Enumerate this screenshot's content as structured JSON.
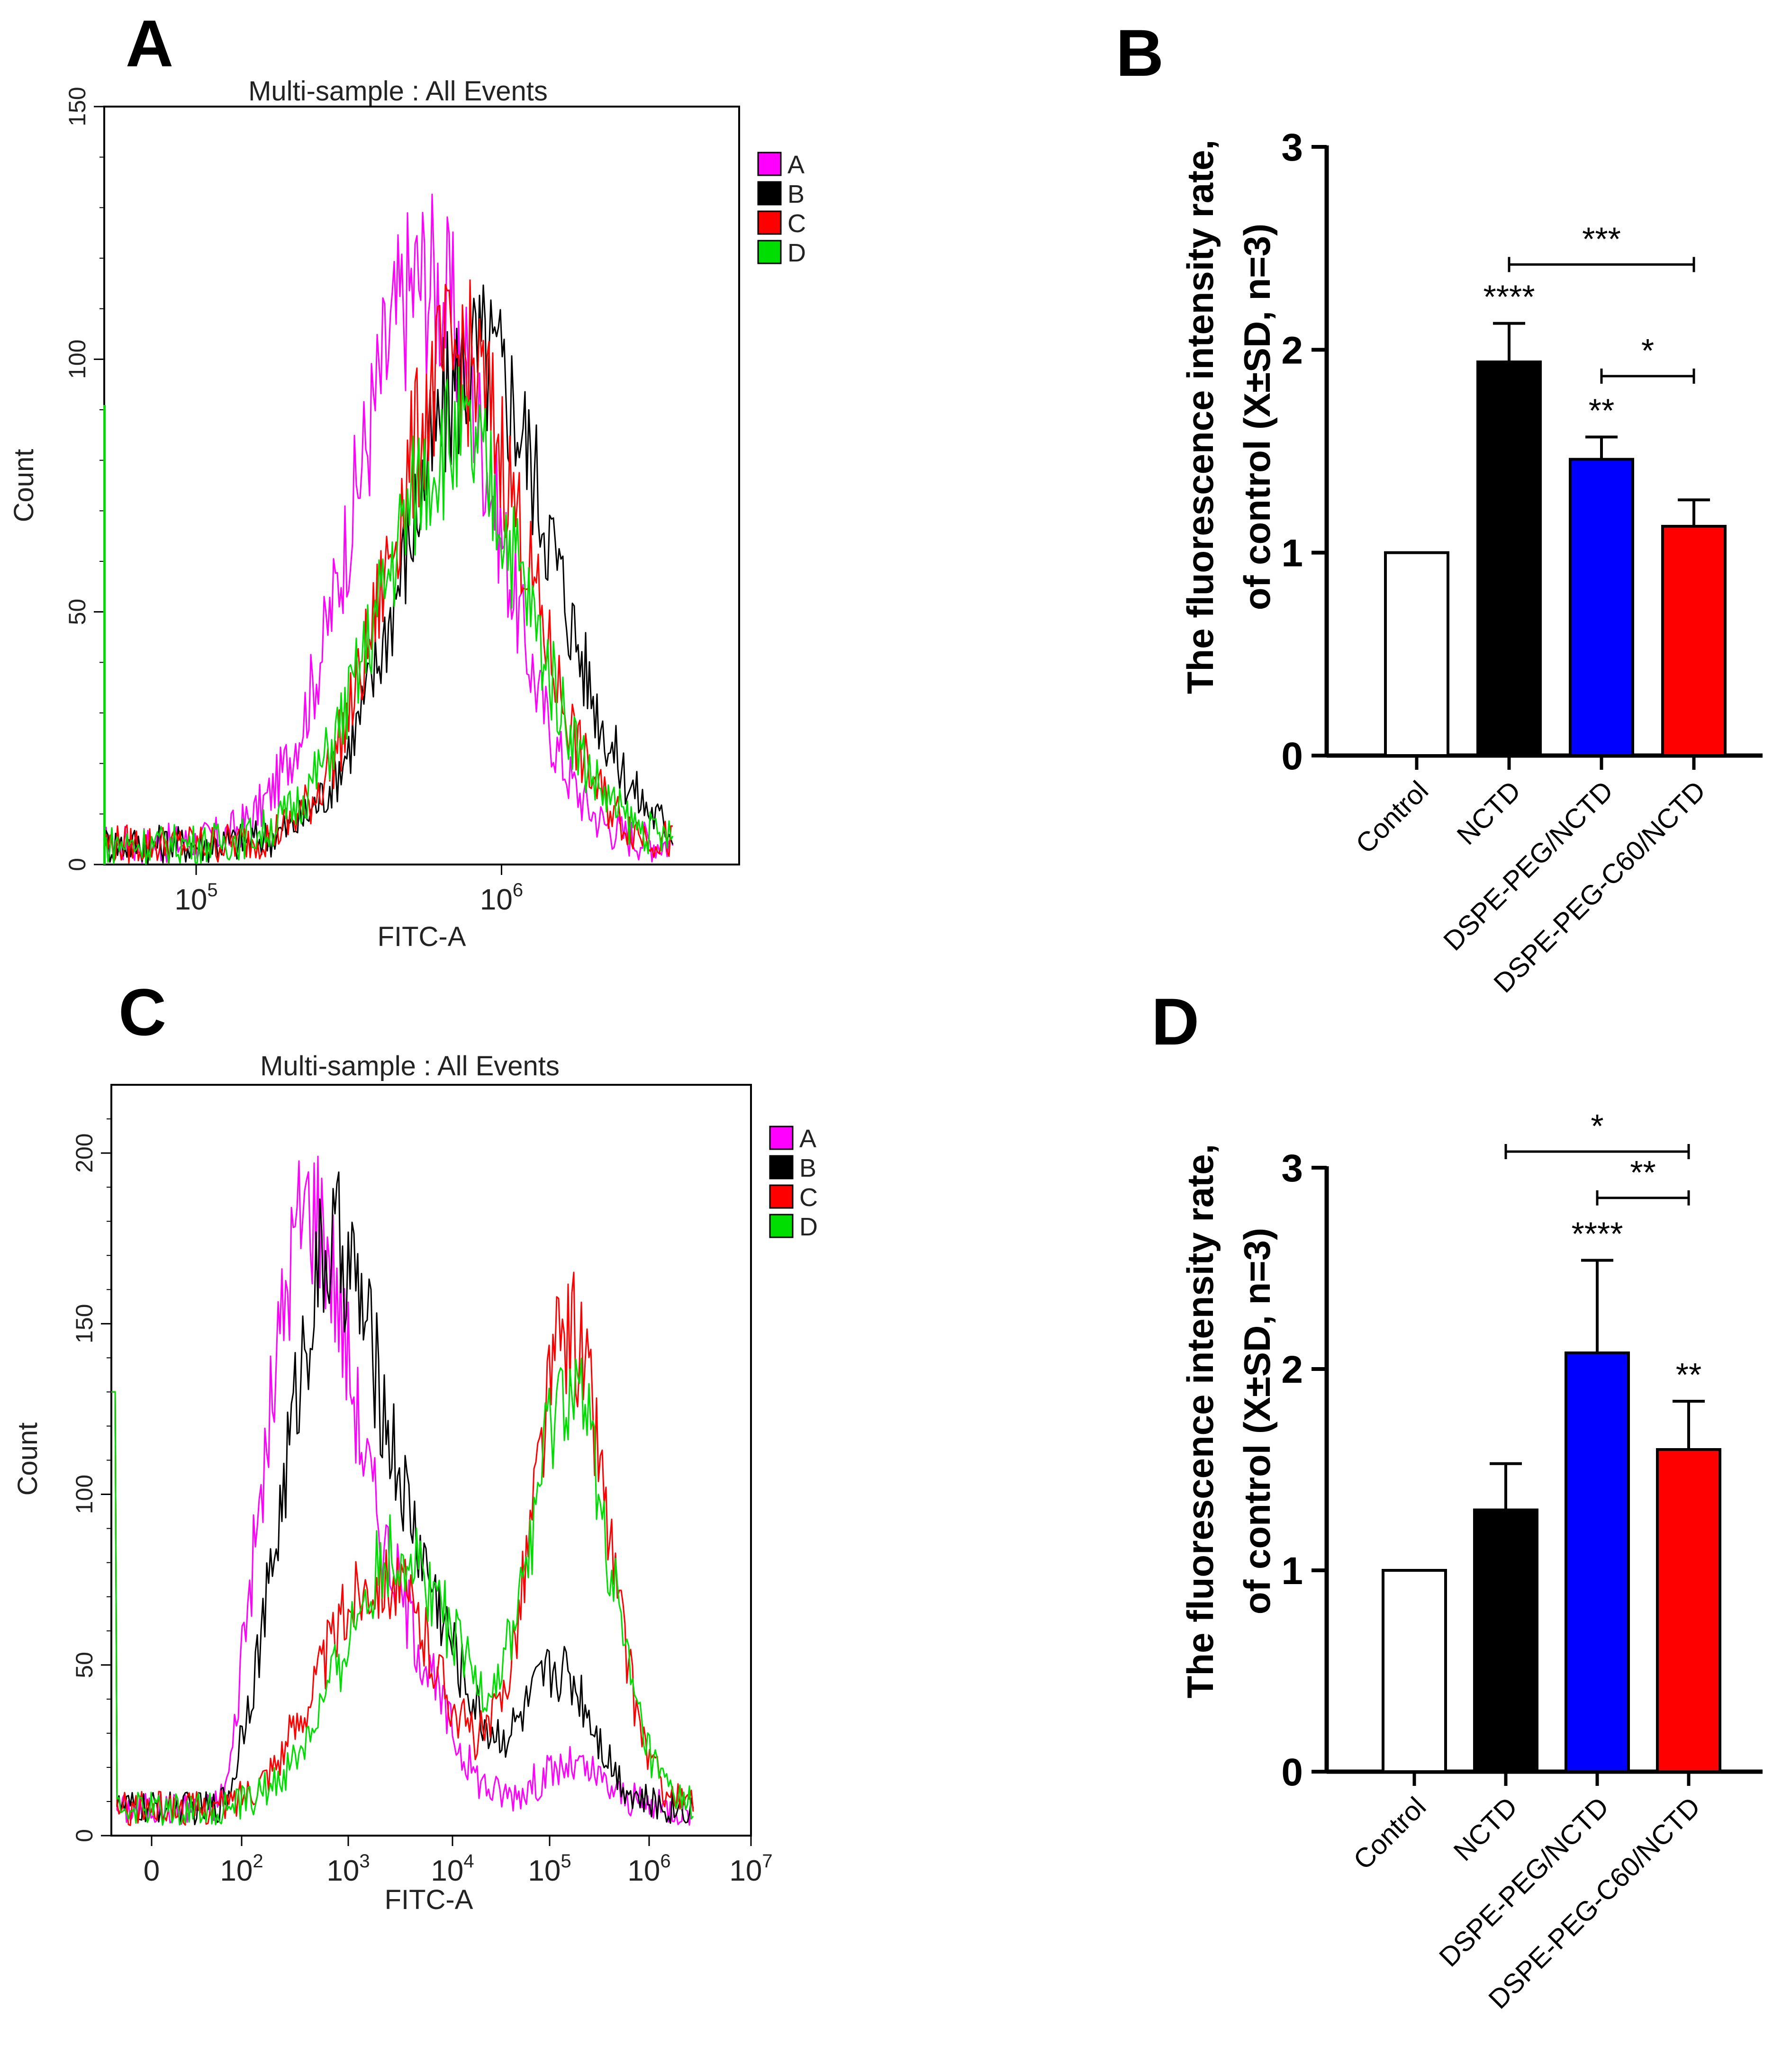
{
  "panels": {
    "A": {
      "letter": "A",
      "chart_data": {
        "type": "line",
        "title": "Multi-sample : All Events",
        "xlabel": "FITC-A",
        "ylabel": "Count",
        "xscale": "log",
        "xlim": [
          50000,
          6000000
        ],
        "ylim": [
          0,
          150
        ],
        "yticks": [
          0,
          50,
          100,
          150
        ],
        "xticks": [
          {
            "value": 100000,
            "base": "10",
            "exp": "5"
          },
          {
            "value": 1000000,
            "base": "10",
            "exp": "6"
          }
        ],
        "legend": {
          "position": "top-right",
          "entries": [
            "A",
            "B",
            "C",
            "D"
          ]
        },
        "series": [
          {
            "name": "A",
            "color": "#ff00ff",
            "peak_x": 560000,
            "peak_y": 112,
            "width": 0.23
          },
          {
            "name": "B",
            "color": "#000000",
            "peak_x": 850000,
            "peak_y": 96,
            "width": 0.24
          },
          {
            "name": "C",
            "color": "#ff0000",
            "peak_x": 720000,
            "peak_y": 96,
            "width": 0.22
          },
          {
            "name": "D",
            "color": "#00dd00",
            "peak_x": 700000,
            "peak_y": 80,
            "width": 0.24
          }
        ]
      }
    },
    "B": {
      "letter": "B",
      "chart_data": {
        "type": "bar",
        "ylabel_line1": "The fluorescence intensity rate,",
        "ylabel_line2": "of control (X±SD, n=3)",
        "ylim": [
          0,
          3
        ],
        "yticks": [
          "0",
          "1",
          "2",
          "3"
        ],
        "categories": [
          "Control",
          "NCTD",
          "DSPE-PEG/NCTD",
          "DSPE-PEG-C60/NCTD"
        ],
        "values": [
          1.0,
          1.94,
          1.46,
          1.13
        ],
        "errors": [
          0,
          0.19,
          0.11,
          0.13
        ],
        "colors": [
          "#ffffff",
          "#000000",
          "#0000ff",
          "#ff0000"
        ],
        "bar_sig": [
          "",
          "****",
          "**",
          ""
        ],
        "brackets": [
          {
            "from": 1,
            "to": 3,
            "y": 2.42,
            "label": "***"
          },
          {
            "from": 2,
            "to": 3,
            "y": 1.87,
            "label": "*"
          }
        ]
      }
    },
    "C": {
      "letter": "C",
      "chart_data": {
        "type": "line",
        "title": "Multi-sample : All Events",
        "xlabel": "FITC-A",
        "ylabel": "Count",
        "xscale": "biexponential",
        "xlim": [
          -0.35,
          7
        ],
        "ylim": [
          0,
          220
        ],
        "yticks": [
          0,
          50,
          100,
          150,
          200
        ],
        "xticks": [
          {
            "value": 0,
            "base": "0",
            "exp": ""
          },
          {
            "value": 2,
            "base": "10",
            "exp": "2"
          },
          {
            "value": 3,
            "base": "10",
            "exp": "3"
          },
          {
            "value": 4,
            "base": "10",
            "exp": "4"
          },
          {
            "value": 5,
            "base": "10",
            "exp": "5"
          },
          {
            "value": 6,
            "base": "10",
            "exp": "6"
          },
          {
            "value": 7,
            "base": "10",
            "exp": "7"
          }
        ],
        "legend": {
          "position": "top-right",
          "entries": [
            "A",
            "B",
            "C",
            "D"
          ]
        },
        "series": [
          {
            "name": "A",
            "color": "#ff00ff",
            "peaks": [
              [
                2.6,
                165,
                0.38
              ],
              [
                3.4,
                55,
                0.45
              ],
              [
                5.2,
                12,
                0.35
              ]
            ]
          },
          {
            "name": "B",
            "color": "#000000",
            "peaks": [
              [
                2.8,
                145,
                0.42
              ],
              [
                3.6,
                62,
                0.5
              ],
              [
                5.1,
                40,
                0.35
              ]
            ]
          },
          {
            "name": "C",
            "color": "#ff0000",
            "peaks": [
              [
                3.3,
                68,
                0.55
              ],
              [
                5.2,
                140,
                0.38
              ]
            ]
          },
          {
            "name": "D",
            "color": "#00dd00",
            "peaks": [
              [
                3.5,
                75,
                0.55
              ],
              [
                5.2,
                122,
                0.4
              ]
            ]
          }
        ]
      }
    },
    "D": {
      "letter": "D",
      "chart_data": {
        "type": "bar",
        "ylabel_line1": "The fluorescence intensity rate,",
        "ylabel_line2": "of control (X±SD, n=3)",
        "ylim": [
          0,
          3
        ],
        "yticks": [
          "0",
          "1",
          "2",
          "3"
        ],
        "categories": [
          "Control",
          "NCTD",
          "DSPE-PEG/NCTD",
          "DSPE-PEG-C60/NCTD"
        ],
        "values": [
          1.0,
          1.3,
          2.08,
          1.6
        ],
        "errors": [
          0,
          0.23,
          0.46,
          0.24
        ],
        "colors": [
          "#ffffff",
          "#000000",
          "#0000ff",
          "#ff0000"
        ],
        "bar_sig": [
          "",
          "",
          "****",
          "**"
        ],
        "brackets": [
          {
            "from": 1,
            "to": 3,
            "y": 3.08,
            "label": "*"
          },
          {
            "from": 2,
            "to": 3,
            "y": 2.85,
            "label": "**"
          }
        ]
      }
    }
  }
}
